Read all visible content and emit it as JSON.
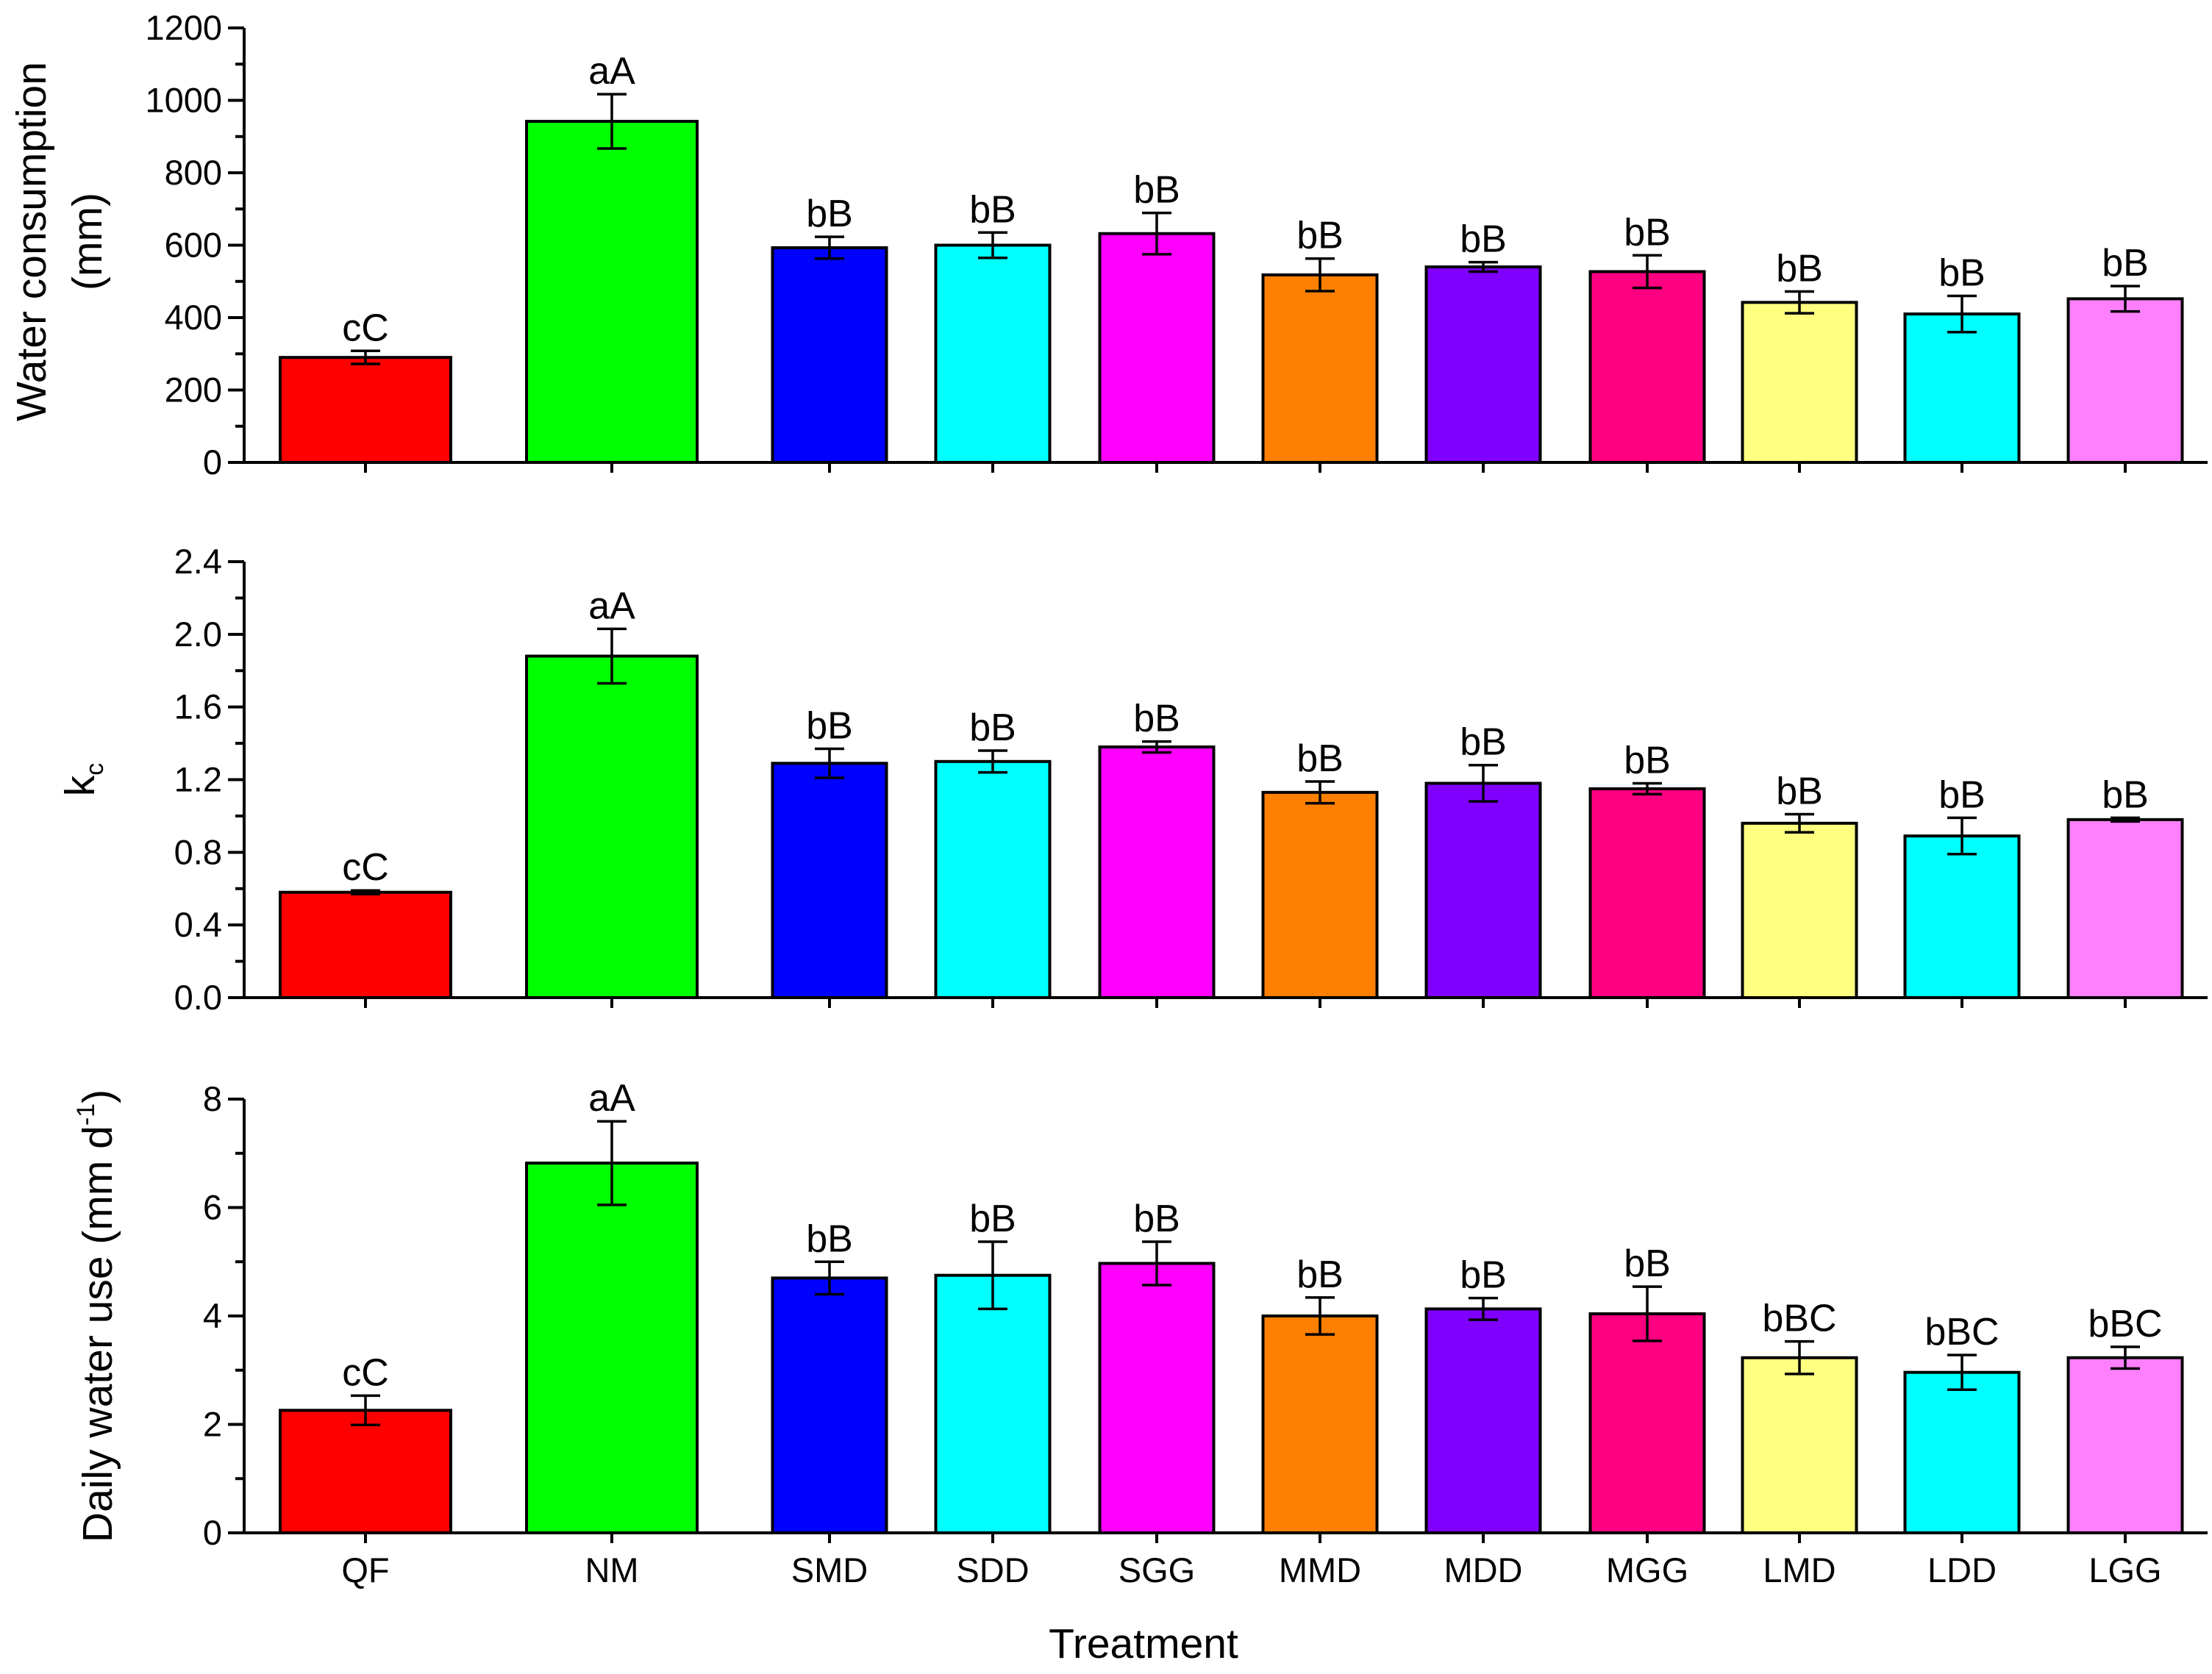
{
  "chart_data": {
    "type": "bar",
    "xlabel": "Treatment",
    "categories": [
      "QF",
      "NM",
      "SMD",
      "SDD",
      "SGG",
      "MMD",
      "MDD",
      "MGG",
      "LMD",
      "LDD",
      "LGG"
    ],
    "colors": [
      "#ff0000",
      "#00ff00",
      "#0000ff",
      "#00ffff",
      "#ff00ff",
      "#ff8000",
      "#8000ff",
      "#ff0080",
      "#ffff80",
      "#00ffff",
      "#ff80ff"
    ],
    "panels": [
      {
        "name": "water-consumption",
        "ylabel_lines": [
          "Water consumption",
          "(mm)"
        ],
        "ylim": [
          0,
          1200
        ],
        "yticks": [
          0,
          200,
          400,
          600,
          800,
          1000,
          1200
        ],
        "tick_decimals": 0,
        "values": [
          290,
          942,
          593,
          600,
          632,
          518,
          540,
          527,
          442,
          410,
          452
        ],
        "errors": [
          18,
          75,
          30,
          35,
          57,
          45,
          13,
          45,
          30,
          50,
          35
        ],
        "labels": [
          "cC",
          "aA",
          "bB",
          "bB",
          "bB",
          "bB",
          "bB",
          "bB",
          "bB",
          "bB",
          "bB"
        ]
      },
      {
        "name": "kc",
        "ylabel_main": "k",
        "ylabel_sub": "c",
        "ylim": [
          0,
          2.4
        ],
        "yticks": [
          0,
          0.4,
          0.8,
          1.2,
          1.6,
          2.0,
          2.4
        ],
        "tick_decimals": 1,
        "values": [
          0.58,
          1.88,
          1.29,
          1.3,
          1.38,
          1.13,
          1.18,
          1.15,
          0.96,
          0.89,
          0.98
        ],
        "errors": [
          0.01,
          0.15,
          0.08,
          0.06,
          0.03,
          0.06,
          0.1,
          0.03,
          0.05,
          0.1,
          0.01
        ],
        "labels": [
          "cC",
          "aA",
          "bB",
          "bB",
          "bB",
          "bB",
          "bB",
          "bB",
          "bB",
          "bB",
          "bB"
        ]
      },
      {
        "name": "daily-water-use",
        "ylabel_main": "Daily water use (mm d",
        "ylabel_sup": "-1",
        "ylabel_end": ")",
        "ylim": [
          0,
          8
        ],
        "yticks": [
          0,
          2,
          4,
          6,
          8
        ],
        "tick_decimals": 0,
        "values": [
          2.26,
          6.82,
          4.7,
          4.75,
          4.97,
          4.0,
          4.13,
          4.04,
          3.23,
          2.96,
          3.23
        ],
        "errors": [
          0.27,
          0.77,
          0.3,
          0.62,
          0.4,
          0.34,
          0.2,
          0.5,
          0.3,
          0.32,
          0.2
        ],
        "labels": [
          "cC",
          "aA",
          "bB",
          "bB",
          "bB",
          "bB",
          "bB",
          "bB",
          "bBC",
          "bBC",
          "bBC"
        ]
      }
    ]
  }
}
